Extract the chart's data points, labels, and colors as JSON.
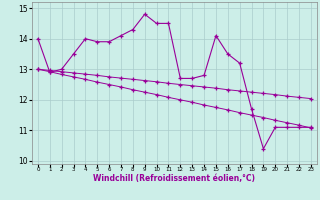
{
  "xlabel": "Windchill (Refroidissement éolien,°C)",
  "background_color": "#cceee8",
  "line_color": "#990099",
  "grid_color": "#aacccc",
  "x_hours": [
    0,
    1,
    2,
    3,
    4,
    5,
    6,
    7,
    8,
    9,
    10,
    11,
    12,
    13,
    14,
    15,
    16,
    17,
    18,
    19,
    20,
    21,
    22,
    23
  ],
  "y_main": [
    14.0,
    12.9,
    13.0,
    13.5,
    14.0,
    13.9,
    13.9,
    14.1,
    14.3,
    14.8,
    14.5,
    14.5,
    12.7,
    12.7,
    12.8,
    14.1,
    13.5,
    13.2,
    11.7,
    10.4,
    11.1,
    11.1,
    11.1,
    11.1
  ],
  "y_linear1": [
    13.0,
    12.96,
    12.92,
    12.88,
    12.84,
    12.8,
    12.75,
    12.71,
    12.67,
    12.63,
    12.59,
    12.54,
    12.5,
    12.46,
    12.42,
    12.38,
    12.33,
    12.29,
    12.25,
    12.21,
    12.17,
    12.12,
    12.08,
    12.04
  ],
  "y_linear2": [
    13.0,
    12.92,
    12.83,
    12.75,
    12.67,
    12.58,
    12.5,
    12.42,
    12.33,
    12.25,
    12.17,
    12.08,
    12.0,
    11.92,
    11.83,
    11.75,
    11.67,
    11.58,
    11.5,
    11.42,
    11.33,
    11.25,
    11.17,
    11.08
  ],
  "ylim": [
    9.9,
    15.2
  ],
  "yticks": [
    10,
    11,
    12,
    13,
    14,
    15
  ],
  "xlim": [
    -0.5,
    23.5
  ],
  "xtick_labels": [
    "0",
    "1",
    "2",
    "3",
    "4",
    "5",
    "6",
    "7",
    "8",
    "9",
    "10",
    "11",
    "12",
    "13",
    "14",
    "15",
    "16",
    "17",
    "18",
    "19",
    "20",
    "21",
    "22",
    "23"
  ]
}
